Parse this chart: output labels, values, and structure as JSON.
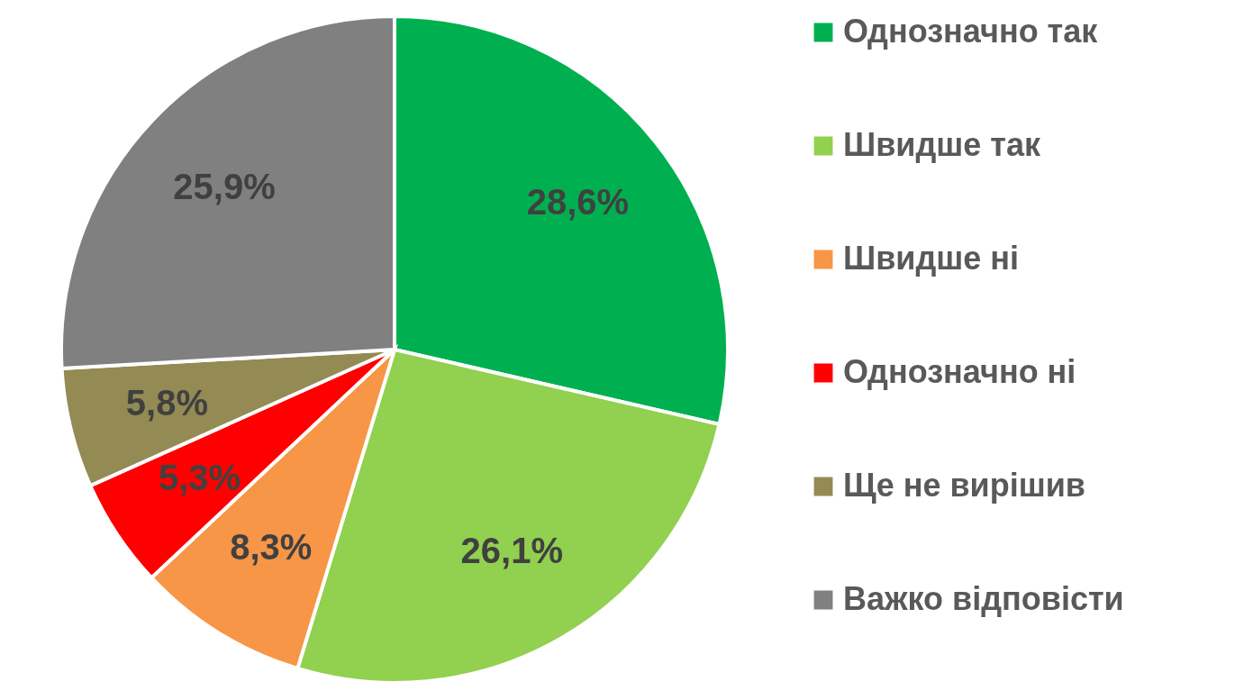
{
  "chart_data": {
    "type": "pie",
    "categories": [
      "Однозначно так",
      "Швидше так",
      "Швидше ні",
      "Однозначно ні",
      "Ще не вирішив",
      "Важко відповісти"
    ],
    "values": [
      28.6,
      26.1,
      8.3,
      5.3,
      5.8,
      25.9
    ],
    "value_labels": [
      "28,6%",
      "26,1%",
      "8,3%",
      "5,3%",
      "5,8%",
      "25,9%"
    ],
    "colors": [
      "#00b050",
      "#92d050",
      "#f79646",
      "#ff0000",
      "#948a54",
      "#808080"
    ],
    "legend": "right"
  }
}
